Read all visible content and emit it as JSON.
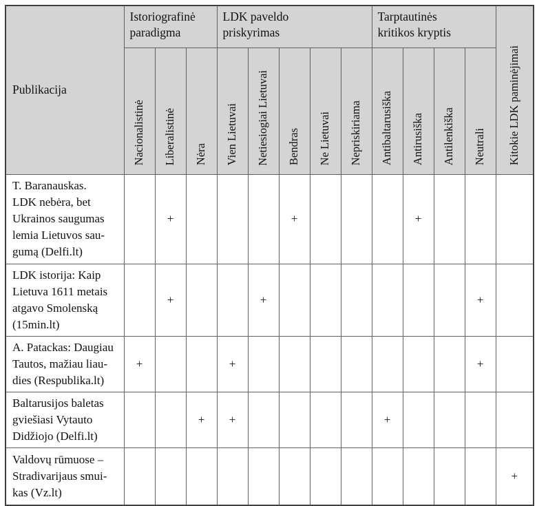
{
  "table": {
    "corner_header": "Publikacija",
    "mark_symbol": "+",
    "groups": [
      {
        "label": "Istoriografinė\nparadigma",
        "span": 3
      },
      {
        "label": "LDK paveldo\npriskyrimas",
        "span": 5
      },
      {
        "label": "Tarptautinės\nkritikos kryptis",
        "span": 4
      }
    ],
    "columns": [
      {
        "label": "Nacionalistinė"
      },
      {
        "label": "Liberalistinė"
      },
      {
        "label": "Nėra"
      },
      {
        "label": "Vien Lietuvai"
      },
      {
        "label": "Netiesiogiai Lietuvai"
      },
      {
        "label": "Bendras"
      },
      {
        "label": "Ne Lietuvai"
      },
      {
        "label": "Nepriskiriama"
      },
      {
        "label": "Antibaltarusiška"
      },
      {
        "label": "Antirusiška"
      },
      {
        "label": "Antilenkiška"
      },
      {
        "label": "Neutrali"
      },
      {
        "label": "Kitokie LDK paminėjimai"
      }
    ],
    "rows": [
      {
        "label": "T. Baranauskas.\nLDK nebėra, bet\nUkrainos saugumas\nlemia Lietuvos sau-\ngumą (Delfi.lt)",
        "marks": [
          "",
          "+",
          "",
          "",
          "",
          "+",
          "",
          "",
          "",
          "+",
          "",
          "",
          ""
        ]
      },
      {
        "label": "LDK istorija: Kaip\nLietuva 1611 metais\natgavo Smolenską\n(15min.lt)",
        "marks": [
          "",
          "+",
          "",
          "",
          "+",
          "",
          "",
          "",
          "",
          "",
          "",
          "+",
          ""
        ]
      },
      {
        "label": "A. Patackas: Daugiau\nTautos, mažiau liau-\ndies (Respublika.lt)",
        "marks": [
          "+",
          "",
          "",
          "+",
          "",
          "",
          "",
          "",
          "",
          "",
          "",
          "+",
          ""
        ]
      },
      {
        "label": "Baltarusijos baletas\ngviešiasi Vytauto\nDidžiojo (Delfi.lt)",
        "marks": [
          "",
          "",
          "+",
          "+",
          "",
          "",
          "",
          "",
          "+",
          "",
          "",
          "",
          ""
        ]
      },
      {
        "label": "Valdovų rūmuose –\nStradivarijaus smui-\nkas (Vz.lt)",
        "marks": [
          "",
          "",
          "",
          "",
          "",
          "",
          "",
          "",
          "",
          "",
          "",
          "",
          "+"
        ]
      }
    ],
    "colors": {
      "header_bg": "#d4d4d4",
      "border": "#5f5f5f",
      "outer_border": "#3f3f3f",
      "text": "#111111"
    }
  }
}
